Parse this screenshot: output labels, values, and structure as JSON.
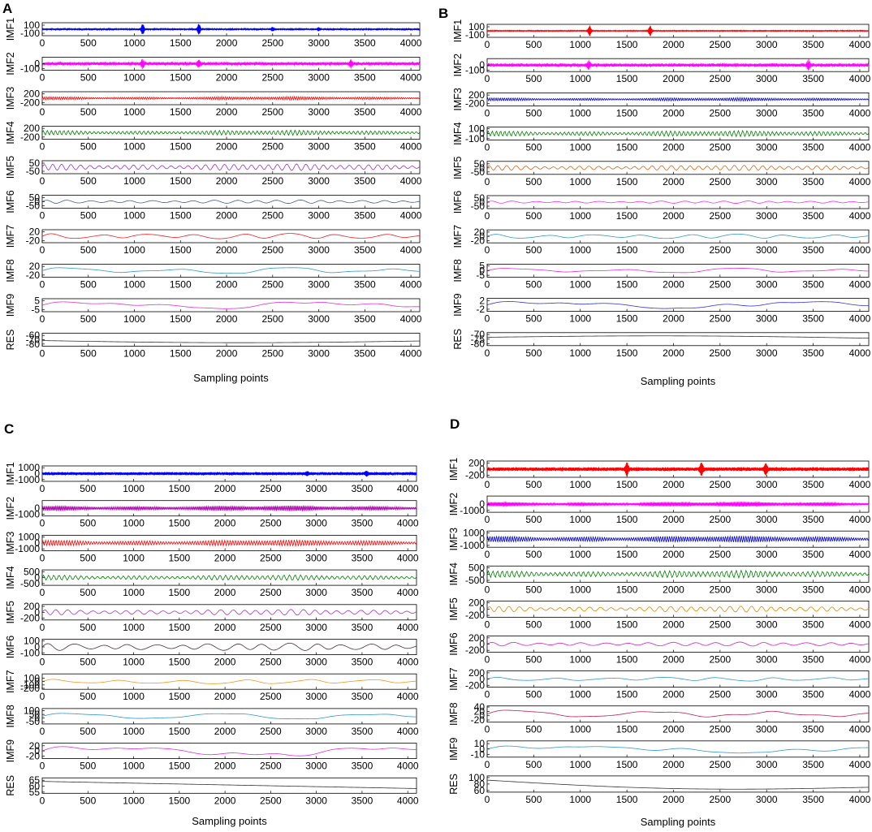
{
  "chart_data": [
    {
      "type": "line",
      "panel_label": "A",
      "xlabel": "Sampling points",
      "xlim": [
        0,
        4096
      ],
      "xticks": [
        0,
        500,
        1000,
        1500,
        2000,
        2500,
        3000,
        3500,
        4000
      ],
      "subplots": [
        {
          "name": "IMF1",
          "color": "#0000ff",
          "yticks": [
            100,
            -100
          ],
          "ylim": [
            -160,
            160
          ],
          "kind": "burst",
          "amp": 18,
          "nc": 700,
          "bursts": [
            [
              1090,
              70
            ],
            [
              1700,
              70
            ],
            [
              2500,
              25
            ],
            [
              3000,
              20
            ]
          ]
        },
        {
          "name": "IMF2",
          "color": "#ff00ff",
          "yticks": [
            0,
            -100
          ],
          "ylim": [
            -130,
            130
          ],
          "kind": "burst",
          "amp": 35,
          "nc": 380,
          "bursts": [
            [
              1090,
              45
            ],
            [
              1700,
              40
            ],
            [
              3350,
              40
            ]
          ]
        },
        {
          "name": "IMF3",
          "color": "#ff0000",
          "yticks": [
            200,
            -200
          ],
          "ylim": [
            -300,
            300
          ],
          "kind": "osc",
          "amp": 70,
          "nc": 180
        },
        {
          "name": "IMF4",
          "color": "#008000",
          "yticks": [
            200,
            -200
          ],
          "ylim": [
            -300,
            300
          ],
          "kind": "osc",
          "amp": 110,
          "nc": 90
        },
        {
          "name": "IMF5",
          "color": "#9932cc",
          "yticks": [
            50,
            -50
          ],
          "ylim": [
            -80,
            80
          ],
          "kind": "osc",
          "amp": 38,
          "nc": 42
        },
        {
          "name": "IMF6",
          "color": "#4a5a9c",
          "yticks": [
            50,
            0,
            -50
          ],
          "ylim": [
            -80,
            80
          ],
          "kind": "osc",
          "amp": 20,
          "nc": 18
        },
        {
          "name": "IMF7",
          "color": "#ee2222",
          "yticks": [
            20,
            -20
          ],
          "ylim": [
            -30,
            30
          ],
          "kind": "osc",
          "amp": 12,
          "nc": 8
        },
        {
          "name": "IMF8",
          "color": "#3399cc",
          "yticks": [
            20,
            -20
          ],
          "ylim": [
            -30,
            30
          ],
          "kind": "osc",
          "amp": 14,
          "nc": 3.5
        },
        {
          "name": "IMF9",
          "color": "#dd33dd",
          "yticks": [
            5,
            -5
          ],
          "ylim": [
            -7,
            7
          ],
          "kind": "osc",
          "amp": 4,
          "nc": 1.7
        },
        {
          "name": "RES",
          "color": "#333333",
          "yticks": [
            -60,
            -70,
            -80
          ],
          "ylim": [
            -85,
            -55
          ],
          "kind": "trend",
          "start": -72,
          "end": -73,
          "dip": -78
        }
      ]
    },
    {
      "type": "line",
      "panel_label": "B",
      "xlabel": "Sampling points",
      "xlim": [
        0,
        4096
      ],
      "xticks": [
        0,
        500,
        1000,
        1500,
        2000,
        2500,
        3000,
        3500,
        4000
      ],
      "subplots": [
        {
          "name": "IMF1",
          "color": "#ff0000",
          "yticks": [
            100,
            -100
          ],
          "ylim": [
            -160,
            160
          ],
          "kind": "burst",
          "amp": 10,
          "nc": 700,
          "bursts": [
            [
              1100,
              70
            ],
            [
              1750,
              70
            ]
          ]
        },
        {
          "name": "IMF2",
          "color": "#ff00ff",
          "yticks": [
            0,
            -100
          ],
          "ylim": [
            -130,
            130
          ],
          "kind": "burst",
          "amp": 35,
          "nc": 380,
          "bursts": [
            [
              1090,
              45
            ],
            [
              3450,
              50
            ]
          ]
        },
        {
          "name": "IMF3",
          "color": "#0000cc",
          "yticks": [
            200,
            -200
          ],
          "ylim": [
            -300,
            300
          ],
          "kind": "osc",
          "amp": 70,
          "nc": 180
        },
        {
          "name": "IMF4",
          "color": "#008000",
          "yticks": [
            100,
            0,
            -100
          ],
          "ylim": [
            -130,
            130
          ],
          "kind": "osc",
          "amp": 55,
          "nc": 90
        },
        {
          "name": "IMF5",
          "color": "#d2691e",
          "yticks": [
            50,
            0,
            -50
          ],
          "ylim": [
            -80,
            80
          ],
          "kind": "osc",
          "amp": 30,
          "nc": 42
        },
        {
          "name": "IMF6",
          "color": "#ee33ee",
          "yticks": [
            50,
            0,
            -50
          ],
          "ylim": [
            -80,
            80
          ],
          "kind": "osc",
          "amp": 14,
          "nc": 18
        },
        {
          "name": "IMF7",
          "color": "#3399cc",
          "yticks": [
            20,
            0,
            -20
          ],
          "ylim": [
            -30,
            30
          ],
          "kind": "osc",
          "amp": 10,
          "nc": 8
        },
        {
          "name": "IMF8",
          "color": "#dd33dd",
          "yticks": [
            5,
            0,
            -5
          ],
          "ylim": [
            -7,
            7
          ],
          "kind": "osc",
          "amp": 2.5,
          "nc": 3.5
        },
        {
          "name": "IMF9",
          "color": "#3333dd",
          "yticks": [
            2,
            -2
          ],
          "ylim": [
            -3,
            3
          ],
          "kind": "osc",
          "amp": 1.8,
          "nc": 1.5
        },
        {
          "name": "RES",
          "color": "#333333",
          "yticks": [
            -70,
            -75,
            -80
          ],
          "ylim": [
            -82,
            -68
          ],
          "kind": "trend",
          "start": -73,
          "end": -74,
          "dip": -71
        }
      ]
    },
    {
      "type": "line",
      "panel_label": "C",
      "xlabel": "Sampling points",
      "xlim": [
        0,
        4096
      ],
      "xticks": [
        0,
        500,
        1000,
        1500,
        2000,
        2500,
        3000,
        3500,
        4000
      ],
      "subplots": [
        {
          "name": "IMF1",
          "color": "#0000ff",
          "yticks": [
            1000,
            0,
            -1000
          ],
          "ylim": [
            -1300,
            1300
          ],
          "kind": "burst",
          "amp": 250,
          "nc": 600,
          "bursts": [
            [
              2900,
              150
            ],
            [
              3550,
              150
            ]
          ]
        },
        {
          "name": "IMF2",
          "color": "#aa00aa",
          "yticks": [
            0,
            -1000
          ],
          "ylim": [
            -1300,
            1300
          ],
          "kind": "osc",
          "amp": 420,
          "nc": 260
        },
        {
          "name": "IMF3",
          "color": "#ff0000",
          "yticks": [
            1000,
            0,
            -1000
          ],
          "ylim": [
            -1300,
            1300
          ],
          "kind": "osc",
          "amp": 480,
          "nc": 140
        },
        {
          "name": "IMF4",
          "color": "#008000",
          "yticks": [
            500,
            0,
            -500
          ],
          "ylim": [
            -650,
            650
          ],
          "kind": "osc",
          "amp": 220,
          "nc": 70
        },
        {
          "name": "IMF5",
          "color": "#aa33cc",
          "yticks": [
            200,
            0,
            -200
          ],
          "ylim": [
            -260,
            260
          ],
          "kind": "osc",
          "amp": 90,
          "nc": 32
        },
        {
          "name": "IMF6",
          "color": "#443333",
          "yticks": [
            100,
            0,
            -100
          ],
          "ylim": [
            -130,
            130
          ],
          "kind": "osc",
          "amp": 60,
          "nc": 14
        },
        {
          "name": "IMF7",
          "color": "#ee9922",
          "yticks": [
            100,
            0,
            -100,
            -200
          ],
          "ylim": [
            -230,
            230
          ],
          "kind": "osc",
          "amp": 70,
          "nc": 6
        },
        {
          "name": "IMF8",
          "color": "#3399cc",
          "yticks": [
            100,
            50,
            0,
            -50
          ],
          "ylim": [
            -80,
            130
          ],
          "kind": "osc",
          "amp": 40,
          "nc": 2.5
        },
        {
          "name": "IMF9",
          "color": "#dd33dd",
          "yticks": [
            20,
            0,
            -20
          ],
          "ylim": [
            -30,
            30
          ],
          "kind": "osc",
          "amp": 20,
          "nc": 1.3
        },
        {
          "name": "RES",
          "color": "#333333",
          "yticks": [
            65,
            60,
            55
          ],
          "ylim": [
            54,
            67
          ],
          "kind": "trend",
          "start": 64,
          "end": 58,
          "dip": 61
        }
      ]
    },
    {
      "type": "line",
      "panel_label": "D",
      "xlabel": "Sampling points",
      "xlim": [
        0,
        4096
      ],
      "xticks": [
        0,
        500,
        1000,
        1500,
        2000,
        2500,
        3000,
        3500,
        4000
      ],
      "subplots": [
        {
          "name": "IMF1",
          "color": "#ff0000",
          "yticks": [
            200,
            0,
            -200
          ],
          "ylim": [
            -260,
            260
          ],
          "kind": "burst",
          "amp": 60,
          "nc": 650,
          "bursts": [
            [
              1500,
              90
            ],
            [
              2300,
              90
            ],
            [
              2990,
              90
            ]
          ]
        },
        {
          "name": "IMF2",
          "color": "#ff00ff",
          "yticks": [
            0,
            -1000
          ],
          "ylim": [
            -1300,
            1300
          ],
          "kind": "osc",
          "amp": 350,
          "nc": 360
        },
        {
          "name": "IMF3",
          "color": "#0000cc",
          "yticks": [
            1000,
            0,
            -1000
          ],
          "ylim": [
            -1300,
            1300
          ],
          "kind": "osc",
          "amp": 480,
          "nc": 170
        },
        {
          "name": "IMF4",
          "color": "#008000",
          "yticks": [
            500,
            0,
            -500
          ],
          "ylim": [
            -650,
            650
          ],
          "kind": "osc",
          "amp": 280,
          "nc": 80
        },
        {
          "name": "IMF5",
          "color": "#dd8800",
          "yticks": [
            200,
            0,
            -200
          ],
          "ylim": [
            -260,
            260
          ],
          "kind": "osc",
          "amp": 90,
          "nc": 38
        },
        {
          "name": "IMF6",
          "color": "#cc22cc",
          "yticks": [
            200,
            0,
            -200
          ],
          "ylim": [
            -260,
            260
          ],
          "kind": "osc",
          "amp": 60,
          "nc": 17
        },
        {
          "name": "IMF7",
          "color": "#3399cc",
          "yticks": [
            200,
            0,
            -200
          ],
          "ylim": [
            -260,
            260
          ],
          "kind": "osc",
          "amp": 60,
          "nc": 7
        },
        {
          "name": "IMF8",
          "color": "#bb2255",
          "yticks": [
            40,
            20,
            0,
            -20
          ],
          "ylim": [
            -30,
            45
          ],
          "kind": "osc",
          "amp": 18,
          "nc": 3
        },
        {
          "name": "IMF9",
          "color": "#3399cc",
          "yticks": [
            10,
            0,
            -10
          ],
          "ylim": [
            -15,
            15
          ],
          "kind": "osc",
          "amp": 7,
          "nc": 1.1
        },
        {
          "name": "RES",
          "color": "#333333",
          "yticks": [
            100,
            80,
            60
          ],
          "ylim": [
            55,
            105
          ],
          "kind": "trend",
          "start": 92,
          "end": 70,
          "dip": 62
        }
      ]
    }
  ]
}
